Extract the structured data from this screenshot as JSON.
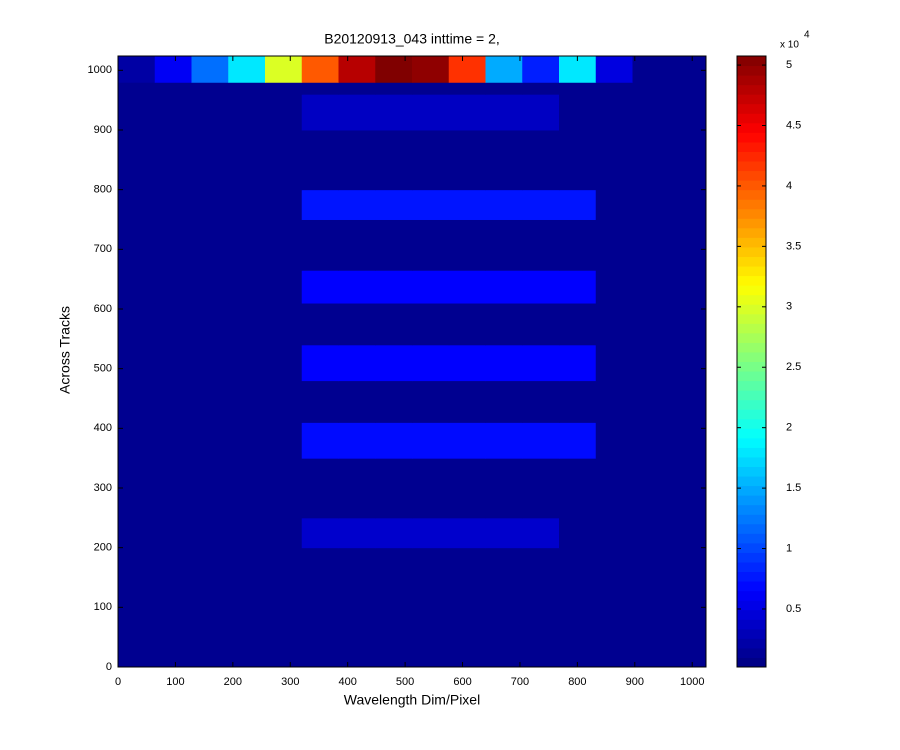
{
  "chart_data": {
    "type": "heatmap",
    "title": "B20120913_043 inttime = 2,",
    "xlabel": "Wavelength Dim/Pixel",
    "ylabel": "Across Tracks",
    "xlim": [
      0,
      1024
    ],
    "ylim": [
      0,
      1024
    ],
    "xticks": [
      0,
      100,
      200,
      300,
      400,
      500,
      600,
      700,
      800,
      900,
      1000
    ],
    "yticks": [
      0,
      100,
      200,
      300,
      400,
      500,
      600,
      700,
      800,
      900,
      1000
    ],
    "colormap": "jet",
    "clim": [
      200,
      50750
    ],
    "colorbar_ticks": [
      {
        "value": 5000,
        "label": "0.5"
      },
      {
        "value": 10000,
        "label": "1"
      },
      {
        "value": 15000,
        "label": "1.5"
      },
      {
        "value": 20000,
        "label": "2"
      },
      {
        "value": 25000,
        "label": "2.5"
      },
      {
        "value": 30000,
        "label": "3"
      },
      {
        "value": 35000,
        "label": "3.5"
      },
      {
        "value": 40000,
        "label": "4"
      },
      {
        "value": 45000,
        "label": "4.5"
      },
      {
        "value": 50000,
        "label": "5"
      }
    ],
    "colorbar_multiplier": "x 10",
    "colorbar_exponent": "4",
    "xedges": [
      0,
      64,
      128,
      192,
      256,
      320,
      384,
      448,
      512,
      576,
      640,
      704,
      768,
      832,
      896,
      960,
      1024
    ],
    "yedges": [
      0,
      200,
      250,
      350,
      410,
      480,
      540,
      610,
      665,
      750,
      800,
      900,
      960,
      980,
      1024
    ],
    "z": [
      [
        1000,
        1000,
        1000,
        1000,
        1000,
        1000,
        1000,
        1000,
        1000,
        1000,
        1000,
        1000,
        1000,
        1000,
        1000,
        1000
      ],
      [
        1000,
        1000,
        1000,
        1000,
        1000,
        4000,
        4000,
        4000,
        4000,
        4000,
        4000,
        4000,
        1000,
        1000,
        1000,
        1000
      ],
      [
        1000,
        1000,
        1000,
        1000,
        1000,
        1000,
        1000,
        1000,
        1000,
        1000,
        1000,
        1000,
        1000,
        1000,
        1000,
        1000
      ],
      [
        1000,
        1000,
        1000,
        1000,
        1000,
        7000,
        7000,
        7000,
        7000,
        7000,
        7000,
        7000,
        7000,
        1000,
        1000,
        1000
      ],
      [
        1000,
        1000,
        1000,
        1000,
        1000,
        1000,
        1000,
        1000,
        1000,
        1000,
        1000,
        1000,
        1000,
        1000,
        1000,
        1000
      ],
      [
        1000,
        1000,
        1000,
        1000,
        1000,
        6500,
        6500,
        6500,
        6500,
        6500,
        6500,
        6500,
        6500,
        1000,
        1000,
        1000
      ],
      [
        1000,
        1000,
        1000,
        1000,
        1000,
        1000,
        1000,
        1000,
        1000,
        1000,
        1000,
        1000,
        1000,
        1000,
        1000,
        1000
      ],
      [
        1000,
        1000,
        1000,
        1000,
        1000,
        6500,
        6500,
        6500,
        6500,
        6500,
        6500,
        6500,
        6500,
        1000,
        1000,
        1000
      ],
      [
        1000,
        1000,
        1000,
        1000,
        1000,
        1000,
        1000,
        1000,
        1000,
        1000,
        1000,
        1000,
        1000,
        1000,
        1000,
        1000
      ],
      [
        1000,
        1000,
        1000,
        1000,
        1000,
        7500,
        7500,
        7500,
        7500,
        7500,
        7500,
        7500,
        7500,
        1000,
        1000,
        1000
      ],
      [
        1000,
        1000,
        1000,
        1000,
        1000,
        1000,
        1000,
        1000,
        1000,
        1000,
        1000,
        1000,
        1000,
        1000,
        1000,
        1000
      ],
      [
        1000,
        1000,
        1000,
        1000,
        1000,
        3500,
        3500,
        3500,
        3500,
        3500,
        3500,
        3500,
        1000,
        1000,
        1000,
        1000
      ],
      [
        1000,
        1000,
        1000,
        1000,
        1000,
        1000,
        1000,
        1000,
        1000,
        1000,
        1000,
        1000,
        1000,
        1000,
        1000,
        1000
      ],
      [
        2000,
        6000,
        12000,
        18000,
        30000,
        40000,
        48000,
        51000,
        50000,
        42000,
        15000,
        8000,
        18000,
        5000,
        1000,
        1000
      ]
    ]
  }
}
